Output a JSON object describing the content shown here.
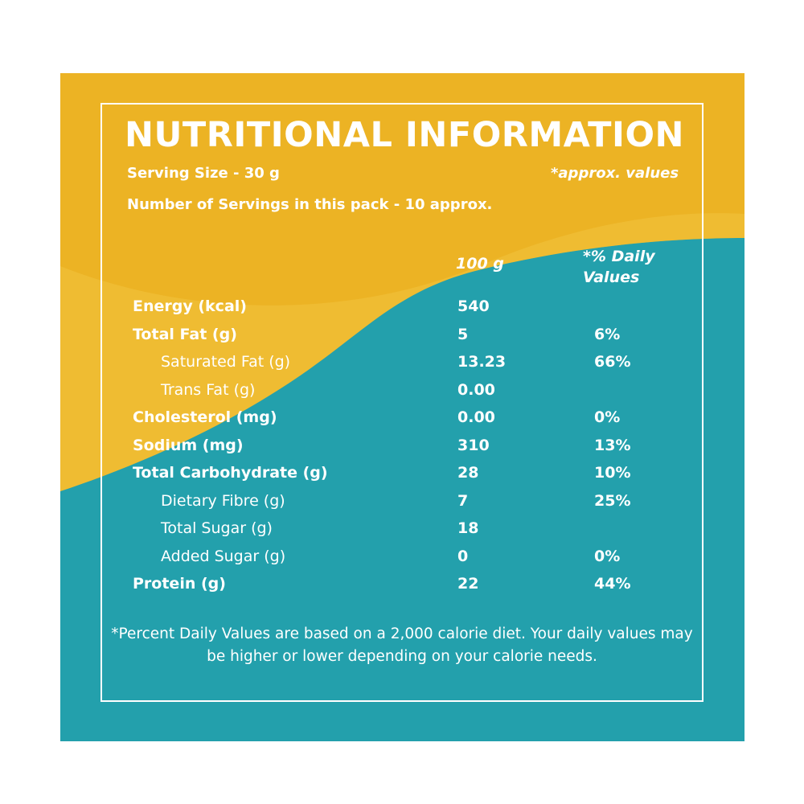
{
  "colors": {
    "yellow": "#ECB324",
    "yellow_light": "#F3C23E",
    "teal": "#23A0AC",
    "text": "#FFFFFF"
  },
  "title": "NUTRITIONAL INFORMATION",
  "serving_size": "Serving Size - 30 g",
  "approx_note": "*approx. values",
  "servings_per_pack": "Number of Servings in this pack - 10 approx.",
  "columns": {
    "amount": "100 g",
    "daily_value_line1": "*% Daily",
    "daily_value_line2": "Values"
  },
  "rows": [
    {
      "label": "Energy (kcal)",
      "value": "540",
      "dv": "",
      "indent": false
    },
    {
      "label": "Total Fat (g)",
      "value": "5",
      "dv": "6%",
      "indent": false
    },
    {
      "label": "Saturated Fat (g)",
      "value": "13.23",
      "dv": "66%",
      "indent": true
    },
    {
      "label": "Trans Fat (g)",
      "value": "0.00",
      "dv": "",
      "indent": true
    },
    {
      "label": "Cholesterol (mg)",
      "value": "0.00",
      "dv": "0%",
      "indent": false
    },
    {
      "label": "Sodium (mg)",
      "value": "310",
      "dv": "13%",
      "indent": false
    },
    {
      "label": "Total Carbohydrate (g)",
      "value": "28",
      "dv": "10%",
      "indent": false
    },
    {
      "label": "Dietary Fibre (g)",
      "value": "7",
      "dv": "25%",
      "indent": true
    },
    {
      "label": "Total Sugar (g)",
      "value": "18",
      "dv": "",
      "indent": true
    },
    {
      "label": "Added Sugar (g)",
      "value": "0",
      "dv": "0%",
      "indent": true
    },
    {
      "label": "Protein (g)",
      "value": "22",
      "dv": "44%",
      "indent": false
    }
  ],
  "footnote": "*Percent Daily Values are based on a 2,000 calorie diet. Your daily values may be higher or lower depending on your calorie needs."
}
